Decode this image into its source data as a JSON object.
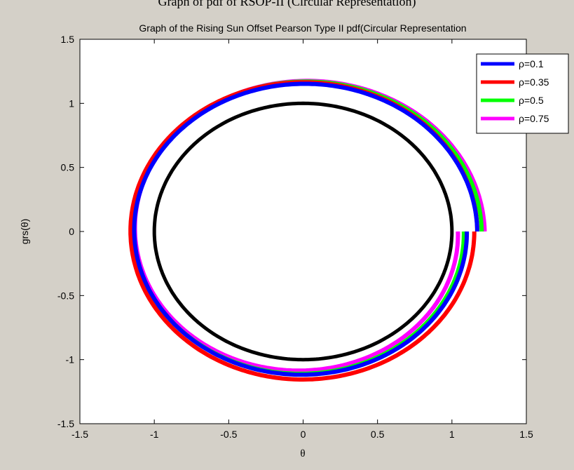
{
  "page": {
    "outer_title": "Graph of pdf of RSOP-II (Circular Representation)"
  },
  "chart_data": {
    "type": "line",
    "title": "Graph of  the Rising Sun Offset Pearson Type II pdf(Circular Representation",
    "xlabel": "θ",
    "ylabel": "grs(θ)",
    "xlim": [
      -1.5,
      1.5
    ],
    "ylim": [
      -1.5,
      1.5
    ],
    "xticks": [
      -1.5,
      -1,
      -0.5,
      0,
      0.5,
      1,
      1.5
    ],
    "xtick_labels": [
      "-1.5",
      "-1",
      "-0.5",
      "0",
      "0.5",
      "1",
      "1.5"
    ],
    "yticks": [
      -1.5,
      -1,
      -0.5,
      0,
      0.5,
      1,
      1.5
    ],
    "ytick_labels": [
      "-1.5",
      "-1",
      "-0.5",
      "0",
      "0.5",
      "1",
      "1.5"
    ],
    "grid": false,
    "legend_position": "top-right",
    "unit_circle": {
      "radius": 1,
      "color": "#000000"
    },
    "series": [
      {
        "name": "ρ=0.1",
        "color": "#0000ff",
        "radius_start": 1.17,
        "radius_end": 1.1,
        "bottom_depth": 1.12
      },
      {
        "name": "ρ=0.35",
        "color": "#ff0000",
        "radius_start": 1.17,
        "radius_end": 1.15,
        "bottom_depth": 1.15
      },
      {
        "name": "ρ=0.5",
        "color": "#00ff00",
        "radius_start": 1.2,
        "radius_end": 1.08,
        "bottom_depth": 1.1
      },
      {
        "name": "ρ=0.75",
        "color": "#ff00ff",
        "radius_start": 1.22,
        "radius_end": 1.04,
        "bottom_depth": 1.07
      }
    ]
  }
}
